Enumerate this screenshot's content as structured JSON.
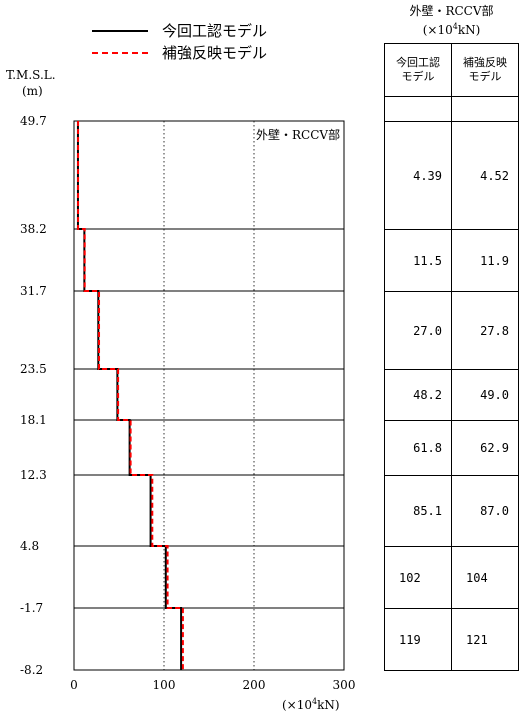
{
  "legend": [
    {
      "label": "今回工認モデル",
      "color": "#000000",
      "style": "solid"
    },
    {
      "label": "補強反映モデル",
      "color": "#ff0000",
      "style": "dashed"
    }
  ],
  "axis": {
    "ylabel": "T.M.S.L.",
    "yunit": "(m)",
    "xunit_pre": "(×10",
    "xunit_exp": "4",
    "xunit_post": "kN)",
    "section_label": "外壁・RCCV部"
  },
  "table": {
    "title": "外壁・RCCV部",
    "unit_pre": "(×10",
    "unit_exp": "4",
    "unit_post": "kN)",
    "col1_header": [
      "今回工認",
      "モデル"
    ],
    "col2_header": [
      "補強反映",
      "モデル"
    ],
    "rows": [
      {
        "a": "4.39",
        "b": "4.52"
      },
      {
        "a": "11.5",
        "b": "11.9"
      },
      {
        "a": "27.0",
        "b": "27.8"
      },
      {
        "a": "48.2",
        "b": "49.0"
      },
      {
        "a": "61.8",
        "b": "62.9"
      },
      {
        "a": "85.1",
        "b": "87.0"
      },
      {
        "a": "102",
        "b": "104"
      },
      {
        "a": "119",
        "b": "121"
      }
    ]
  },
  "chart_data": {
    "type": "line",
    "subtype": "step",
    "title": "外壁・RCCV部",
    "xlabel": "(×10^4kN)",
    "ylabel": "T.M.S.L. (m)",
    "xlim": [
      0,
      300
    ],
    "xticks": [
      "0",
      "100",
      "200",
      "300"
    ],
    "elevations": [
      49.7,
      38.2,
      31.7,
      23.5,
      18.1,
      12.3,
      4.8,
      -1.7,
      -8.2
    ],
    "ytick_labels": [
      "49.7",
      "38.2",
      "31.7",
      "23.5",
      "18.1",
      "12.3",
      "4.8",
      "-1.7",
      "-8.2"
    ],
    "grid": "horizontal lines at elevations, dotted verticals at 100 and 200",
    "series": [
      {
        "name": "今回工認モデル",
        "color": "#000000",
        "style": "solid",
        "values": [
          4.39,
          11.5,
          27.0,
          48.2,
          61.8,
          85.1,
          102,
          119
        ]
      },
      {
        "name": "補強反映モデル",
        "color": "#ff0000",
        "style": "dashed",
        "values": [
          4.52,
          11.9,
          27.8,
          49.0,
          62.9,
          87.0,
          104,
          121
        ]
      }
    ]
  }
}
